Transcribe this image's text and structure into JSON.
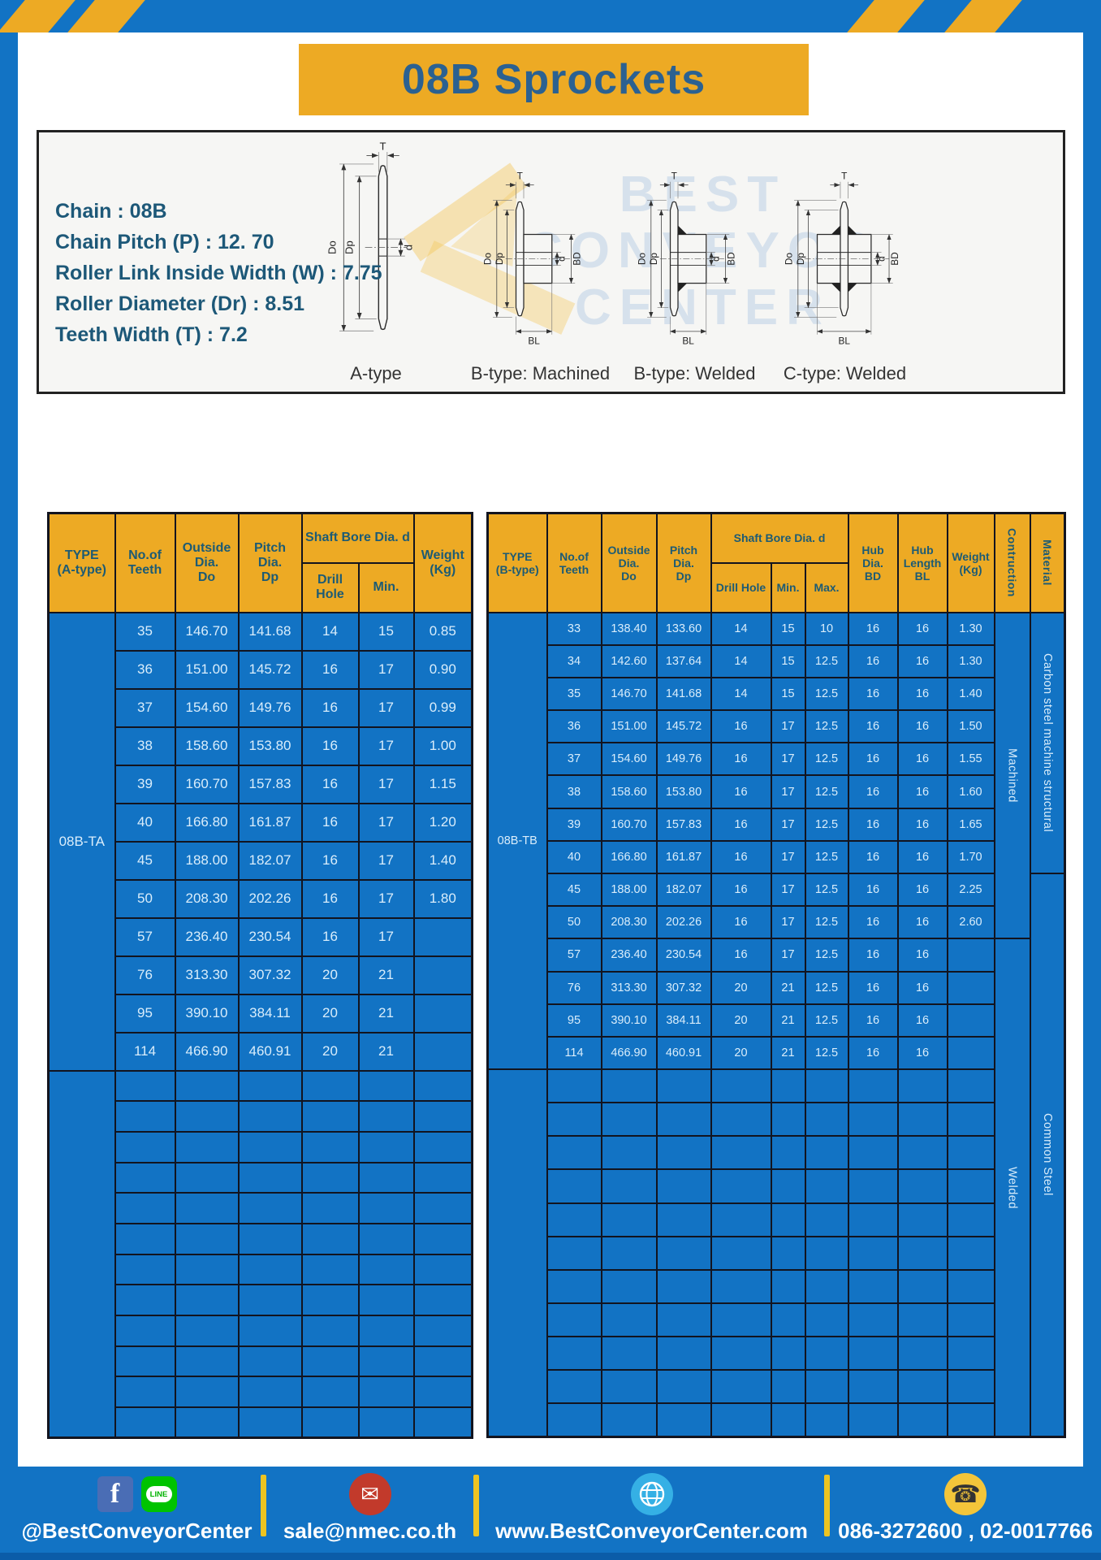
{
  "page": {
    "title": "08B Sprockets"
  },
  "specs": {
    "lines": [
      "Chain  : 08B",
      "Chain Pitch (P)  :  12. 70",
      "Roller Link Inside Width (W)  :  7.75",
      "Roller Diameter (Dr)  : 8.51",
      "Teeth Width (T)  :  7.2"
    ]
  },
  "diagrams": {
    "dim_labels": {
      "T": "T",
      "Do": "Do",
      "Dp": "Dp",
      "d": "d",
      "BD": "BD",
      "BL": "BL"
    },
    "captions": [
      "A-type",
      "B-type: Machined",
      "B-type: Welded",
      "C-type: Welded"
    ],
    "watermark": [
      "BEST",
      "CONVEYOR",
      "CENTER"
    ]
  },
  "tables": {
    "left": {
      "headers": {
        "type": "TYPE\n(A-type)",
        "teeth": "No.of\nTeeth",
        "outside": "Outside\nDia.\nDo",
        "pitch": "Pitch Dia.\nDp",
        "shaft_bore": "Shaft Bore Dia. d",
        "drill": "Drill Hole",
        "min": "Min.",
        "weight": "Weight\n(Kg)"
      },
      "col_names": [
        "teeth",
        "outside-dia",
        "pitch-dia",
        "drill-hole",
        "min",
        "weight"
      ],
      "type_groups": [
        {
          "label": "08B-TA",
          "rows": 12
        },
        {
          "label": "",
          "rows": 12
        }
      ],
      "rows": [
        [
          "35",
          "146.70",
          "141.68",
          "14",
          "15",
          "0.85"
        ],
        [
          "36",
          "151.00",
          "145.72",
          "16",
          "17",
          "0.90"
        ],
        [
          "37",
          "154.60",
          "149.76",
          "16",
          "17",
          "0.99"
        ],
        [
          "38",
          "158.60",
          "153.80",
          "16",
          "17",
          "1.00"
        ],
        [
          "39",
          "160.70",
          "157.83",
          "16",
          "17",
          "1.15"
        ],
        [
          "40",
          "166.80",
          "161.87",
          "16",
          "17",
          "1.20"
        ],
        [
          "45",
          "188.00",
          "182.07",
          "16",
          "17",
          "1.40"
        ],
        [
          "50",
          "208.30",
          "202.26",
          "16",
          "17",
          "1.80"
        ],
        [
          "57",
          "236.40",
          "230.54",
          "16",
          "17",
          ""
        ],
        [
          "76",
          "313.30",
          "307.32",
          "20",
          "21",
          ""
        ],
        [
          "95",
          "390.10",
          "384.11",
          "20",
          "21",
          ""
        ],
        [
          "114",
          "466.90",
          "460.91",
          "20",
          "21",
          ""
        ]
      ],
      "empty_rows": 12
    },
    "right": {
      "headers": {
        "type": "TYPE\n(B-type)",
        "teeth": "No.of\nTeeth",
        "outside": "Outside\nDia.\nDo",
        "pitch": "Pitch Dia.\nDp",
        "shaft_bore": "Shaft Bore Dia. d",
        "drill": "Drill Hole",
        "min": "Min.",
        "max": "Max.",
        "hub_dia": "Hub Dia.\nBD",
        "hub_len": "Hub\nLength\nBL",
        "weight": "Weight\n(Kg)",
        "construction": "Contruction",
        "material": "Material"
      },
      "col_names": [
        "teeth",
        "outside-dia",
        "pitch-dia",
        "drill-hole",
        "min",
        "max",
        "hub-dia",
        "hub-length",
        "weight"
      ],
      "type_groups": [
        {
          "label": "08B-TB",
          "rows": 14
        },
        {
          "label": "",
          "rows": 11
        }
      ],
      "construction_groups": [
        {
          "label": "Machined",
          "rows": 10
        },
        {
          "label": "Welded",
          "rows": 15
        }
      ],
      "material_groups": [
        {
          "label": "Carbon steel machine structural",
          "rows": 8
        },
        {
          "label": "Common Steel",
          "rows": 17
        }
      ],
      "rows": [
        [
          "33",
          "138.40",
          "133.60",
          "14",
          "15",
          "10",
          "16",
          "16",
          "1.30"
        ],
        [
          "34",
          "142.60",
          "137.64",
          "14",
          "15",
          "12.5",
          "16",
          "16",
          "1.30"
        ],
        [
          "35",
          "146.70",
          "141.68",
          "14",
          "15",
          "12.5",
          "16",
          "16",
          "1.40"
        ],
        [
          "36",
          "151.00",
          "145.72",
          "16",
          "17",
          "12.5",
          "16",
          "16",
          "1.50"
        ],
        [
          "37",
          "154.60",
          "149.76",
          "16",
          "17",
          "12.5",
          "16",
          "16",
          "1.55"
        ],
        [
          "38",
          "158.60",
          "153.80",
          "16",
          "17",
          "12.5",
          "16",
          "16",
          "1.60"
        ],
        [
          "39",
          "160.70",
          "157.83",
          "16",
          "17",
          "12.5",
          "16",
          "16",
          "1.65"
        ],
        [
          "40",
          "166.80",
          "161.87",
          "16",
          "17",
          "12.5",
          "16",
          "16",
          "1.70"
        ],
        [
          "45",
          "188.00",
          "182.07",
          "16",
          "17",
          "12.5",
          "16",
          "16",
          "2.25"
        ],
        [
          "50",
          "208.30",
          "202.26",
          "16",
          "17",
          "12.5",
          "16",
          "16",
          "2.60"
        ],
        [
          "57",
          "236.40",
          "230.54",
          "16",
          "17",
          "12.5",
          "16",
          "16",
          ""
        ],
        [
          "76",
          "313.30",
          "307.32",
          "20",
          "21",
          "12.5",
          "16",
          "16",
          ""
        ],
        [
          "95",
          "390.10",
          "384.11",
          "20",
          "21",
          "12.5",
          "16",
          "16",
          ""
        ],
        [
          "114",
          "466.90",
          "460.91",
          "20",
          "21",
          "12.5",
          "16",
          "16",
          ""
        ]
      ],
      "empty_rows": 11
    }
  },
  "footer": {
    "social_handle": "@BestConveyorCenter",
    "email": "sale@nmec.co.th",
    "website": "www.BestConveyorCenter.com",
    "phones": "086-3272600 , 02-0017766",
    "facebook_label": "f",
    "line_label": "LINE"
  }
}
